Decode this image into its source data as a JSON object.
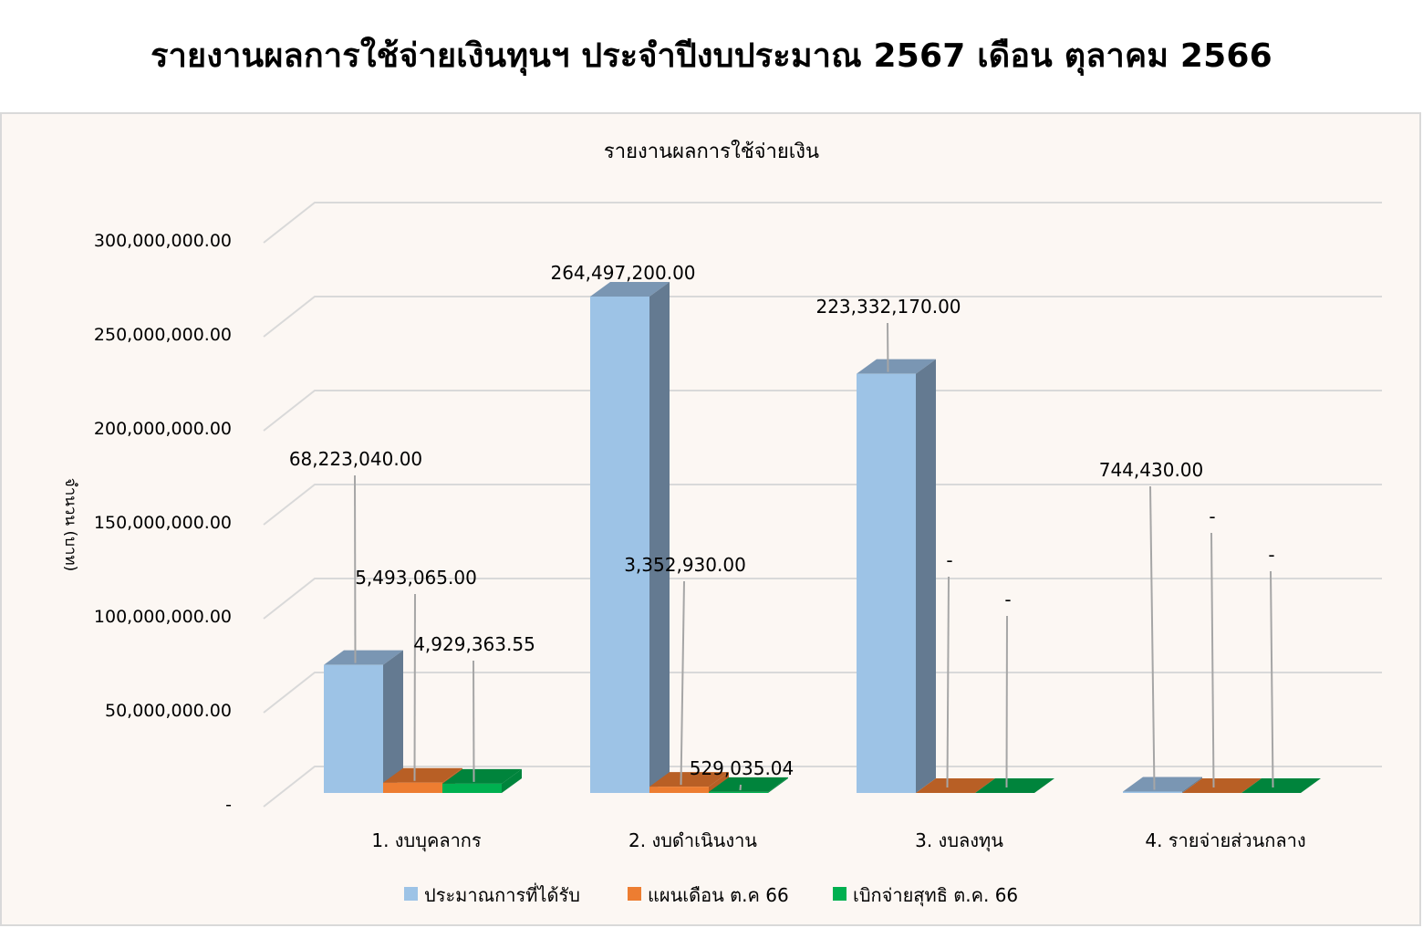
{
  "page": {
    "title": "รายงานผลการใช้จ่ายเงินทุนฯ ประจำปีงบประมาณ 2567 เดือน ตุลาคม 2566"
  },
  "chart_data": {
    "type": "bar",
    "subtype": "3d-clustered-column",
    "title": "รายงานผลการใช้จ่ายเงิน",
    "xlabel": "",
    "ylabel": "จำนวน (บาท)",
    "ylim": [
      0,
      300000000
    ],
    "yticks": [
      0,
      50000000,
      100000000,
      150000000,
      200000000,
      250000000,
      300000000
    ],
    "ytick_labels": [
      "-",
      "50,000,000.00",
      "100,000,000.00",
      "150,000,000.00",
      "200,000,000.00",
      "250,000,000.00",
      "300,000,000.00"
    ],
    "grid": true,
    "legend_position": "bottom",
    "categories": [
      "1. งบบุคลากร",
      "2. งบดำเนินงาน",
      "3. งบลงทุน",
      "4. รายจ่ายส่วนกลาง"
    ],
    "series": [
      {
        "name": "ประมาณการที่ได้รับ",
        "color": "#9dc3e6",
        "values": [
          68223040.0,
          264497200.0,
          223332170.0,
          744430.0
        ],
        "labels": [
          "68,223,040.00",
          "264,497,200.00",
          "223,332,170.00",
          "744,430.00"
        ]
      },
      {
        "name": "แผนเดือน ต.ค 66",
        "color": "#ed7d31",
        "values": [
          5493065.0,
          3352930.0,
          0,
          0
        ],
        "labels": [
          "5,493,065.00",
          "3,352,930.00",
          "-",
          "-"
        ]
      },
      {
        "name": "เบิกจ่ายสุทธิ ต.ค. 66",
        "color": "#00b050",
        "values": [
          4929363.55,
          529035.04,
          0,
          0
        ],
        "labels": [
          "4,929,363.55",
          "529,035.04",
          "-",
          "-"
        ]
      }
    ]
  },
  "colors": {
    "background": "#fcf7f3",
    "gridline": "#d9d9d9",
    "leader_line": "#a6a6a6",
    "blue_side": "#647a91",
    "blue_top": "#7a96b3",
    "orange_side": "#b85f25",
    "orange_top": "#b85f25",
    "green_side": "#00843c",
    "green_top": "#00843c"
  }
}
